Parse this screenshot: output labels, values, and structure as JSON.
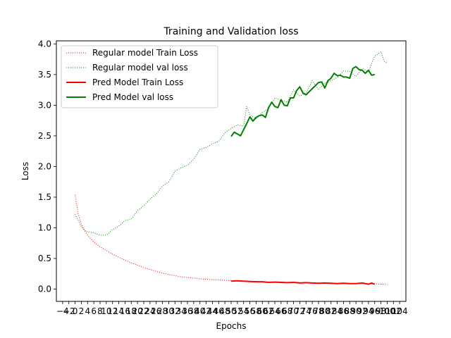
{
  "chart_data": {
    "type": "line",
    "title": "Training and Validation loss",
    "xlabel": "Epochs",
    "ylabel": "Loss",
    "xlim": [
      -6,
      106
    ],
    "ylim": [
      -0.2,
      4.05
    ],
    "grid": false,
    "legend_position": "top-left",
    "x_ticks": [
      -4,
      -2,
      0,
      2,
      4,
      6,
      8,
      10,
      12,
      14,
      16,
      18,
      20,
      22,
      24,
      26,
      28,
      30,
      32,
      34,
      36,
      38,
      40,
      42,
      44,
      46,
      48,
      50,
      52,
      54,
      56,
      58,
      60,
      62,
      64,
      66,
      68,
      70,
      72,
      74,
      76,
      78,
      80,
      82,
      84,
      86,
      88,
      90,
      92,
      94,
      96,
      98,
      100,
      102,
      104
    ],
    "y_ticks": [
      0.0,
      0.5,
      1.0,
      1.5,
      2.0,
      2.5,
      3.0,
      3.5,
      4.0
    ],
    "series": [
      {
        "name": "Regular model Train Loss",
        "color": "#ff0000",
        "style": "dotted",
        "x": [
          0,
          1,
          2,
          3,
          4,
          5,
          6,
          8,
          10,
          12,
          14,
          16,
          18,
          20,
          22,
          24,
          26,
          28,
          30,
          32,
          34,
          36,
          38,
          40,
          42,
          44,
          46,
          48,
          50,
          52,
          56,
          60,
          64,
          68,
          72,
          76,
          80,
          84,
          88,
          92,
          96,
          100
        ],
        "values": [
          1.54,
          1.22,
          1.06,
          0.96,
          0.88,
          0.82,
          0.77,
          0.69,
          0.63,
          0.57,
          0.52,
          0.47,
          0.43,
          0.39,
          0.35,
          0.32,
          0.29,
          0.26,
          0.24,
          0.22,
          0.2,
          0.19,
          0.18,
          0.17,
          0.16,
          0.155,
          0.15,
          0.145,
          0.14,
          0.135,
          0.125,
          0.12,
          0.115,
          0.11,
          0.105,
          0.1,
          0.1,
          0.095,
          0.09,
          0.09,
          0.085,
          0.08
        ]
      },
      {
        "name": "Regular model val loss",
        "color": "#008000",
        "style": "dotted",
        "x": [
          0,
          1,
          2,
          3,
          4,
          6,
          8,
          10,
          12,
          14,
          16,
          18,
          20,
          22,
          24,
          26,
          28,
          30,
          32,
          34,
          36,
          38,
          40,
          42,
          44,
          46,
          48,
          50,
          52,
          54,
          55,
          56,
          58,
          60,
          62,
          64,
          66,
          68,
          70,
          72,
          74,
          76,
          78,
          80,
          82,
          84,
          86,
          88,
          90,
          92,
          94,
          96,
          98,
          99,
          100
        ],
        "values": [
          1.22,
          1.12,
          1.02,
          0.96,
          0.93,
          0.92,
          0.88,
          0.88,
          0.97,
          1.03,
          1.12,
          1.14,
          1.28,
          1.36,
          1.47,
          1.55,
          1.68,
          1.75,
          1.92,
          1.98,
          2.02,
          2.12,
          2.28,
          2.31,
          2.37,
          2.41,
          2.55,
          2.62,
          2.68,
          2.66,
          2.98,
          2.84,
          2.78,
          2.88,
          2.95,
          3.12,
          3.08,
          3.05,
          3.25,
          3.15,
          3.2,
          3.4,
          3.26,
          3.36,
          3.4,
          3.45,
          3.56,
          3.55,
          3.47,
          3.6,
          3.55,
          3.8,
          3.87,
          3.72,
          3.68
        ]
      },
      {
        "name": "Pred Model Train Loss",
        "color": "#ff0000",
        "style": "solid",
        "x": [
          50,
          52,
          54,
          56,
          58,
          60,
          62,
          64,
          66,
          68,
          70,
          72,
          74,
          76,
          78,
          80,
          82,
          84,
          86,
          88,
          90,
          92,
          94,
          95,
          96
        ],
        "values": [
          0.13,
          0.135,
          0.13,
          0.125,
          0.12,
          0.12,
          0.11,
          0.115,
          0.11,
          0.105,
          0.11,
          0.1,
          0.105,
          0.1,
          0.095,
          0.1,
          0.095,
          0.09,
          0.095,
          0.09,
          0.09,
          0.1,
          0.08,
          0.1,
          0.08
        ]
      },
      {
        "name": "Pred Model val loss",
        "color": "#008000",
        "style": "solid",
        "x": [
          50,
          51,
          52,
          53,
          54,
          55,
          56,
          57,
          58,
          59,
          60,
          61,
          62,
          63,
          64,
          65,
          66,
          67,
          68,
          69,
          70,
          71,
          72,
          73,
          74,
          75,
          76,
          77,
          78,
          79,
          80,
          81,
          82,
          83,
          84,
          85,
          86,
          87,
          88,
          89,
          90,
          91,
          92,
          93,
          94,
          95,
          96
        ],
        "values": [
          2.49,
          2.56,
          2.53,
          2.5,
          2.6,
          2.7,
          2.81,
          2.74,
          2.8,
          2.83,
          2.84,
          2.8,
          2.96,
          3.05,
          2.98,
          2.96,
          3.09,
          3.0,
          2.99,
          3.12,
          3.12,
          3.24,
          3.3,
          3.2,
          3.17,
          3.22,
          3.27,
          3.32,
          3.37,
          3.38,
          3.28,
          3.4,
          3.44,
          3.52,
          3.48,
          3.49,
          3.46,
          3.46,
          3.44,
          3.6,
          3.63,
          3.58,
          3.57,
          3.52,
          3.57,
          3.49,
          3.5
        ]
      }
    ]
  }
}
